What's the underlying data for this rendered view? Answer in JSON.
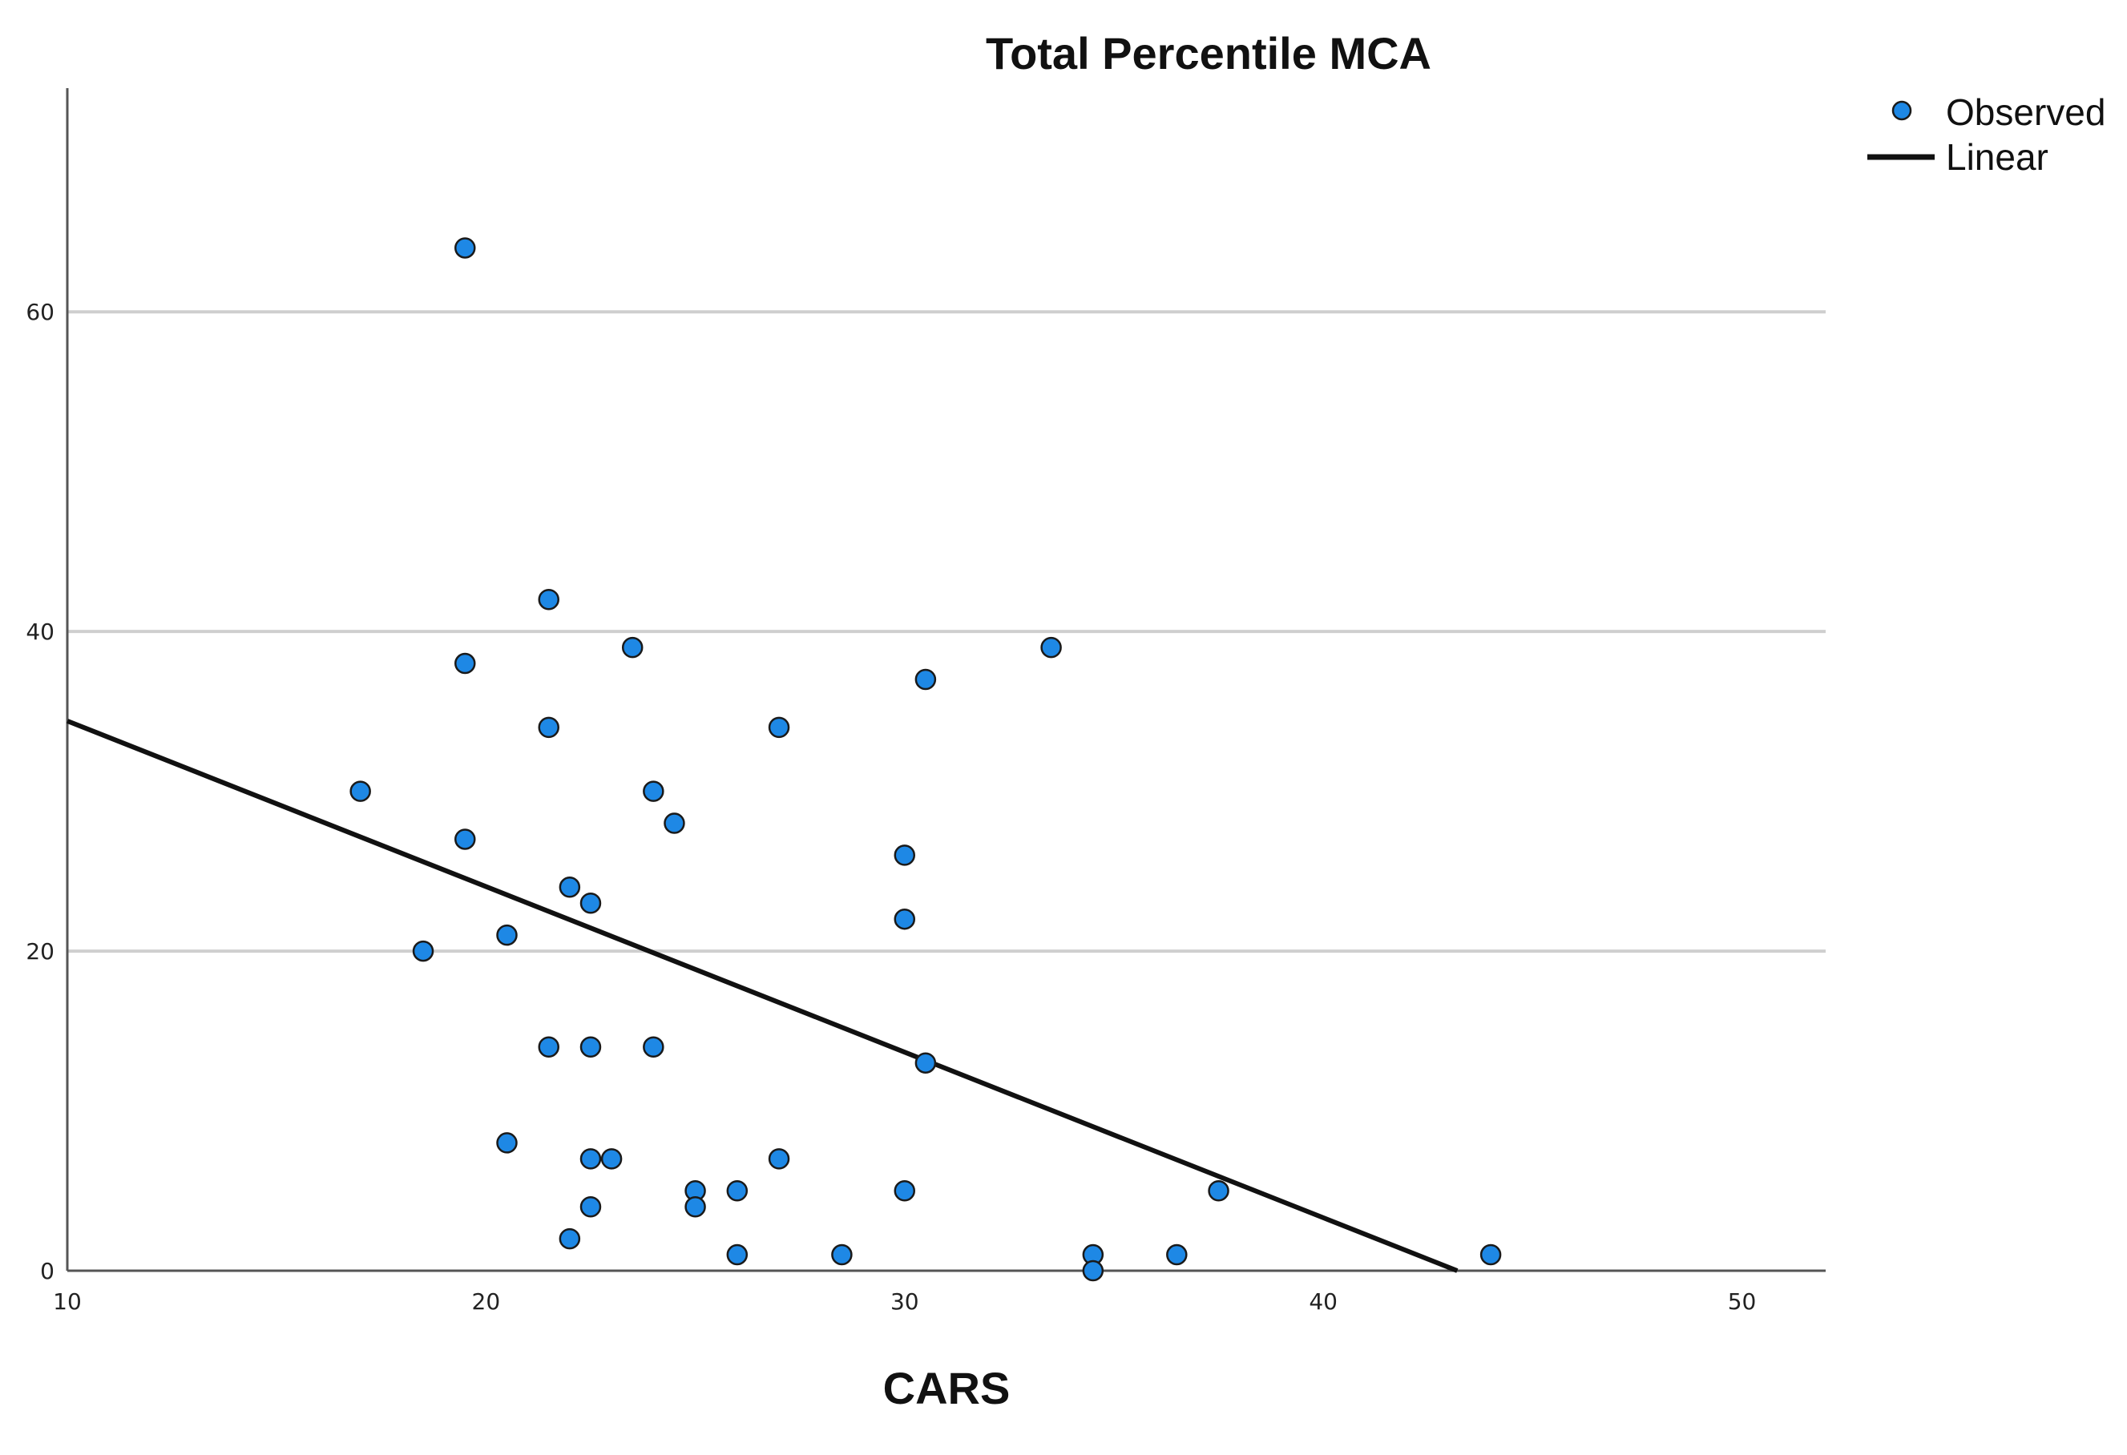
{
  "chart_data": {
    "type": "scatter",
    "title": "Total Percentile MCA",
    "xlabel": "CARS",
    "ylabel": "",
    "xlim": [
      10,
      52
    ],
    "ylim": [
      0,
      74
    ],
    "xticks": [
      10,
      20,
      30,
      40,
      50
    ],
    "yticks": [
      0,
      20,
      40,
      60
    ],
    "grid": "horizontal",
    "legend_position": "top-right",
    "series": [
      {
        "name": "Observed",
        "kind": "points",
        "color": "#1E88E5",
        "x": [
          19.5,
          21.5,
          23.5,
          33.5,
          19.5,
          30.5,
          21.5,
          27,
          17,
          24,
          24.5,
          19.5,
          30,
          22,
          22.5,
          18.5,
          20.5,
          30,
          30.5,
          21.5,
          22.5,
          24,
          20.5,
          22.5,
          23,
          27,
          25,
          30,
          37.5,
          22.5,
          25,
          26,
          22,
          26,
          28.5,
          34.5,
          34.5,
          36.5,
          44
        ],
        "y": [
          64,
          42,
          39,
          39,
          38,
          37,
          34,
          34,
          30,
          30,
          28,
          27,
          26,
          24,
          23,
          20,
          21,
          22,
          13,
          14,
          14,
          14,
          8,
          7,
          7,
          7,
          5,
          5,
          5,
          4,
          4,
          5,
          2,
          1,
          1,
          1,
          0,
          1,
          1
        ]
      },
      {
        "name": "Linear",
        "kind": "line",
        "color": "#111111",
        "x": [
          10,
          43.2
        ],
        "y": [
          34.4,
          0
        ]
      }
    ]
  }
}
